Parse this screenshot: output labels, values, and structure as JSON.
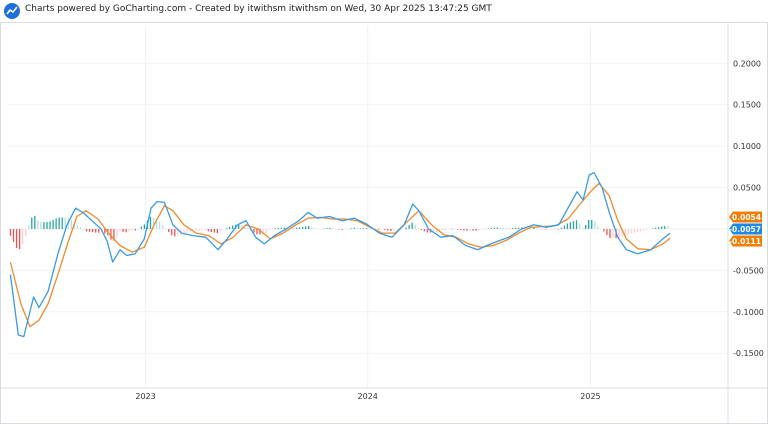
{
  "header": {
    "text": "Charts powered by GoCharting.com - Created by itwithsm itwithsm on Wed, 30 Apr 2025 13:47:25 GMT",
    "logo_icon": "gocharting-logo-icon"
  },
  "chart_data": {
    "type": "line",
    "x_ticks": [
      "2023",
      "2024",
      "2025"
    ],
    "y_ticks": [
      {
        "value": 0.2,
        "label": "0.2000"
      },
      {
        "value": 0.15,
        "label": "0.1500"
      },
      {
        "value": 0.1,
        "label": "0.1000"
      },
      {
        "value": 0.05,
        "label": "0.0500"
      },
      {
        "value": -0.05,
        "label": "-0.0500"
      },
      {
        "value": -0.1,
        "label": "-0.1000"
      },
      {
        "value": -0.15,
        "label": "-0.1500"
      }
    ],
    "ylim": [
      -0.192,
      0.245
    ],
    "x_range": [
      "2022-05-20",
      "2025-08-15"
    ],
    "x_tick_dates": [
      "2023-01-01",
      "2024-01-01",
      "2025-01-01"
    ],
    "grid": true,
    "colors": {
      "macd": "#3a9ae8",
      "signal": "#f08a2c",
      "hist_pos": "#26a69a",
      "hist_pos_light": "#b2dfdb",
      "hist_neg": "#ef5350",
      "hist_neg_light": "#ffcdd2",
      "grid": "#f0f2f5",
      "axis_text": "#333333",
      "label_orange": "#f57c00",
      "label_blue": "#1e88e5"
    },
    "series": [
      {
        "key": "macd",
        "points": [
          [
            "2022-05-24",
            -0.055
          ],
          [
            "2022-06-06",
            -0.128
          ],
          [
            "2022-06-15",
            -0.13
          ],
          [
            "2022-07-01",
            -0.082
          ],
          [
            "2022-07-10",
            -0.095
          ],
          [
            "2022-07-25",
            -0.075
          ],
          [
            "2022-08-10",
            -0.03
          ],
          [
            "2022-08-25",
            0.005
          ],
          [
            "2022-09-08",
            0.025
          ],
          [
            "2022-09-20",
            0.02
          ],
          [
            "2022-10-05",
            0.01
          ],
          [
            "2022-10-20",
            0.0
          ],
          [
            "2022-10-30",
            -0.015
          ],
          [
            "2022-11-08",
            -0.04
          ],
          [
            "2022-11-20",
            -0.025
          ],
          [
            "2022-12-01",
            -0.032
          ],
          [
            "2022-12-15",
            -0.03
          ],
          [
            "2022-12-30",
            -0.012
          ],
          [
            "2023-01-10",
            0.025
          ],
          [
            "2023-01-20",
            0.033
          ],
          [
            "2023-02-01",
            0.032
          ],
          [
            "2023-02-15",
            0.005
          ],
          [
            "2023-03-01",
            -0.005
          ],
          [
            "2023-03-20",
            -0.008
          ],
          [
            "2023-04-10",
            -0.01
          ],
          [
            "2023-04-30",
            -0.025
          ],
          [
            "2023-05-15",
            -0.012
          ],
          [
            "2023-06-01",
            0.005
          ],
          [
            "2023-06-15",
            0.01
          ],
          [
            "2023-07-01",
            -0.01
          ],
          [
            "2023-07-15",
            -0.018
          ],
          [
            "2023-08-01",
            -0.008
          ],
          [
            "2023-08-20",
            0.0
          ],
          [
            "2023-09-10",
            0.01
          ],
          [
            "2023-09-25",
            0.02
          ],
          [
            "2023-10-10",
            0.013
          ],
          [
            "2023-10-30",
            0.015
          ],
          [
            "2023-11-20",
            0.01
          ],
          [
            "2023-12-10",
            0.013
          ],
          [
            "2023-12-30",
            0.006
          ],
          [
            "2024-01-20",
            -0.005
          ],
          [
            "2024-02-10",
            -0.01
          ],
          [
            "2024-03-01",
            0.005
          ],
          [
            "2024-03-15",
            0.03
          ],
          [
            "2024-03-25",
            0.022
          ],
          [
            "2024-04-10",
            0.0
          ],
          [
            "2024-04-30",
            -0.01
          ],
          [
            "2024-05-20",
            -0.008
          ],
          [
            "2024-06-10",
            -0.02
          ],
          [
            "2024-06-30",
            -0.025
          ],
          [
            "2024-07-15",
            -0.02
          ],
          [
            "2024-08-01",
            -0.015
          ],
          [
            "2024-08-20",
            -0.01
          ],
          [
            "2024-09-10",
            0.0
          ],
          [
            "2024-09-30",
            0.005
          ],
          [
            "2024-10-20",
            0.002
          ],
          [
            "2024-11-10",
            0.005
          ],
          [
            "2024-11-25",
            0.025
          ],
          [
            "2024-12-10",
            0.045
          ],
          [
            "2024-12-20",
            0.035
          ],
          [
            "2024-12-30",
            0.065
          ],
          [
            "2025-01-07",
            0.068
          ],
          [
            "2025-01-20",
            0.05
          ],
          [
            "2025-02-01",
            0.02
          ],
          [
            "2025-02-15",
            -0.01
          ],
          [
            "2025-03-01",
            -0.025
          ],
          [
            "2025-03-20",
            -0.03
          ],
          [
            "2025-04-10",
            -0.025
          ],
          [
            "2025-04-30",
            -0.012
          ],
          [
            "2025-05-12",
            -0.005
          ]
        ]
      },
      {
        "key": "signal",
        "points": [
          [
            "2022-05-24",
            -0.04
          ],
          [
            "2022-06-10",
            -0.09
          ],
          [
            "2022-06-25",
            -0.118
          ],
          [
            "2022-07-10",
            -0.11
          ],
          [
            "2022-07-25",
            -0.09
          ],
          [
            "2022-08-10",
            -0.055
          ],
          [
            "2022-08-25",
            -0.02
          ],
          [
            "2022-09-10",
            0.015
          ],
          [
            "2022-09-25",
            0.022
          ],
          [
            "2022-10-15",
            0.012
          ],
          [
            "2022-11-01",
            -0.005
          ],
          [
            "2022-11-20",
            -0.02
          ],
          [
            "2022-12-10",
            -0.028
          ],
          [
            "2022-12-30",
            -0.022
          ],
          [
            "2023-01-15",
            0.005
          ],
          [
            "2023-02-01",
            0.028
          ],
          [
            "2023-02-15",
            0.022
          ],
          [
            "2023-03-05",
            0.005
          ],
          [
            "2023-03-25",
            -0.005
          ],
          [
            "2023-04-15",
            -0.008
          ],
          [
            "2023-05-05",
            -0.018
          ],
          [
            "2023-05-25",
            -0.01
          ],
          [
            "2023-06-15",
            0.005
          ],
          [
            "2023-07-05",
            0.0
          ],
          [
            "2023-07-25",
            -0.012
          ],
          [
            "2023-08-15",
            -0.005
          ],
          [
            "2023-09-05",
            0.005
          ],
          [
            "2023-09-25",
            0.013
          ],
          [
            "2023-10-15",
            0.014
          ],
          [
            "2023-11-05",
            0.012
          ],
          [
            "2023-11-25",
            0.012
          ],
          [
            "2023-12-15",
            0.01
          ],
          [
            "2024-01-05",
            0.002
          ],
          [
            "2024-01-25",
            -0.005
          ],
          [
            "2024-02-15",
            -0.005
          ],
          [
            "2024-03-05",
            0.008
          ],
          [
            "2024-03-25",
            0.022
          ],
          [
            "2024-04-15",
            0.005
          ],
          [
            "2024-05-05",
            -0.007
          ],
          [
            "2024-05-25",
            -0.01
          ],
          [
            "2024-06-15",
            -0.018
          ],
          [
            "2024-07-05",
            -0.022
          ],
          [
            "2024-07-25",
            -0.02
          ],
          [
            "2024-08-15",
            -0.014
          ],
          [
            "2024-09-05",
            -0.005
          ],
          [
            "2024-09-25",
            0.002
          ],
          [
            "2024-10-15",
            0.003
          ],
          [
            "2024-11-05",
            0.004
          ],
          [
            "2024-11-25",
            0.012
          ],
          [
            "2024-12-15",
            0.03
          ],
          [
            "2025-01-01",
            0.045
          ],
          [
            "2025-01-15",
            0.055
          ],
          [
            "2025-02-01",
            0.04
          ],
          [
            "2025-02-15",
            0.01
          ],
          [
            "2025-03-01",
            -0.012
          ],
          [
            "2025-03-20",
            -0.024
          ],
          [
            "2025-04-10",
            -0.025
          ],
          [
            "2025-04-30",
            -0.018
          ],
          [
            "2025-05-12",
            -0.011
          ]
        ]
      }
    ],
    "last_values": [
      {
        "key": "histogram",
        "value": 0.0054,
        "label": "0.0054"
      },
      {
        "key": "macd",
        "value": -0.0057,
        "label": "-0.0057"
      },
      {
        "key": "signal",
        "value": -0.0111,
        "label": "-0.0111"
      }
    ]
  }
}
